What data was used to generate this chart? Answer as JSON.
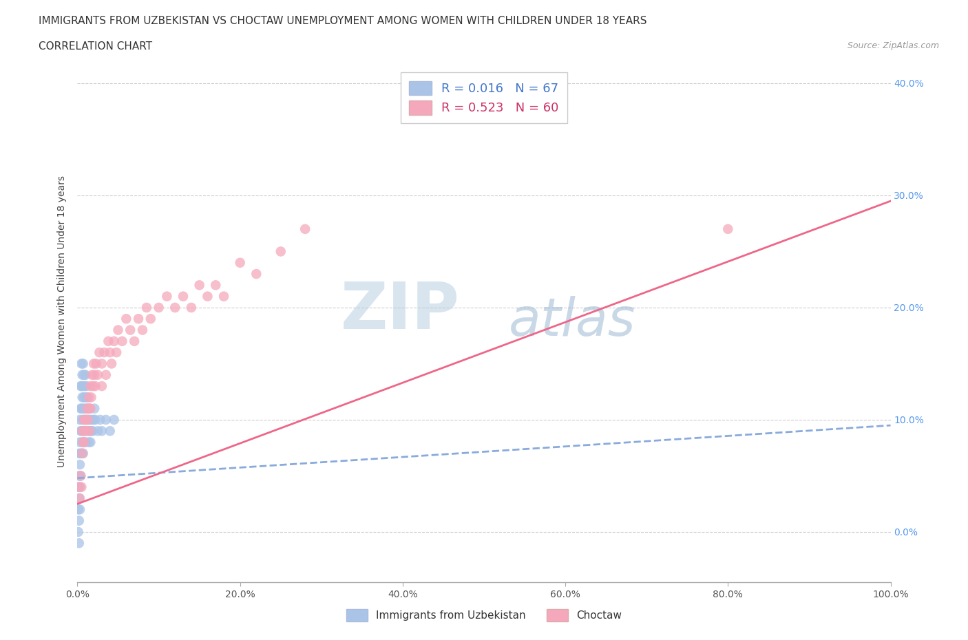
{
  "title_line1": "IMMIGRANTS FROM UZBEKISTAN VS CHOCTAW UNEMPLOYMENT AMONG WOMEN WITH CHILDREN UNDER 18 YEARS",
  "title_line2": "CORRELATION CHART",
  "source_text": "Source: ZipAtlas.com",
  "ylabel": "Unemployment Among Women with Children Under 18 years",
  "xlim": [
    0.0,
    1.0
  ],
  "ylim": [
    -0.045,
    0.42
  ],
  "xticks": [
    0.0,
    0.2,
    0.4,
    0.6,
    0.8,
    1.0
  ],
  "xtick_labels": [
    "0.0%",
    "20.0%",
    "40.0%",
    "60.0%",
    "80.0%",
    "100.0%"
  ],
  "yticks": [
    0.0,
    0.1,
    0.2,
    0.3,
    0.4
  ],
  "ytick_labels": [
    "0.0%",
    "10.0%",
    "20.0%",
    "30.0%",
    "40.0%"
  ],
  "legend_r1": "R = 0.016",
  "legend_n1": "N = 67",
  "legend_r2": "R = 0.523",
  "legend_n2": "N = 60",
  "color_uzbek": "#aac4e8",
  "color_choctaw": "#f5a8bc",
  "color_uzbek_line": "#88aadd",
  "color_choctaw_line": "#ee6688",
  "watermark_zip": "ZIP",
  "watermark_atlas": "atlas",
  "uzbek_trend_x": [
    0.0,
    1.0
  ],
  "uzbek_trend_y": [
    0.048,
    0.095
  ],
  "choctaw_trend_x": [
    0.0,
    1.0
  ],
  "choctaw_trend_y": [
    0.025,
    0.295
  ],
  "uzbek_x": [
    0.001,
    0.001,
    0.001,
    0.002,
    0.002,
    0.002,
    0.002,
    0.002,
    0.003,
    0.003,
    0.003,
    0.003,
    0.003,
    0.004,
    0.004,
    0.004,
    0.004,
    0.004,
    0.005,
    0.005,
    0.005,
    0.005,
    0.005,
    0.006,
    0.006,
    0.006,
    0.006,
    0.007,
    0.007,
    0.007,
    0.007,
    0.007,
    0.008,
    0.008,
    0.008,
    0.008,
    0.009,
    0.009,
    0.009,
    0.01,
    0.01,
    0.01,
    0.01,
    0.011,
    0.011,
    0.012,
    0.012,
    0.013,
    0.013,
    0.014,
    0.014,
    0.015,
    0.015,
    0.016,
    0.016,
    0.017,
    0.018,
    0.019,
    0.02,
    0.021,
    0.022,
    0.025,
    0.028,
    0.03,
    0.035,
    0.04,
    0.045
  ],
  "uzbek_y": [
    0.04,
    0.02,
    0.0,
    0.07,
    0.05,
    0.03,
    0.01,
    -0.01,
    0.1,
    0.08,
    0.06,
    0.04,
    0.02,
    0.13,
    0.11,
    0.09,
    0.07,
    0.05,
    0.15,
    0.13,
    0.11,
    0.09,
    0.07,
    0.14,
    0.12,
    0.1,
    0.08,
    0.15,
    0.13,
    0.11,
    0.09,
    0.07,
    0.14,
    0.12,
    0.1,
    0.08,
    0.13,
    0.11,
    0.09,
    0.14,
    0.12,
    0.1,
    0.08,
    0.13,
    0.11,
    0.12,
    0.1,
    0.11,
    0.09,
    0.1,
    0.08,
    0.11,
    0.09,
    0.1,
    0.08,
    0.09,
    0.1,
    0.09,
    0.1,
    0.11,
    0.1,
    0.09,
    0.1,
    0.09,
    0.1,
    0.09,
    0.1
  ],
  "choctaw_x": [
    0.002,
    0.003,
    0.004,
    0.005,
    0.006,
    0.006,
    0.007,
    0.008,
    0.008,
    0.009,
    0.01,
    0.011,
    0.012,
    0.013,
    0.014,
    0.015,
    0.015,
    0.016,
    0.016,
    0.017,
    0.018,
    0.019,
    0.02,
    0.021,
    0.022,
    0.023,
    0.025,
    0.027,
    0.03,
    0.03,
    0.033,
    0.035,
    0.038,
    0.04,
    0.042,
    0.045,
    0.048,
    0.05,
    0.055,
    0.06,
    0.065,
    0.07,
    0.075,
    0.08,
    0.085,
    0.09,
    0.1,
    0.11,
    0.12,
    0.13,
    0.14,
    0.15,
    0.16,
    0.17,
    0.18,
    0.2,
    0.22,
    0.25,
    0.28,
    0.8
  ],
  "choctaw_y": [
    0.04,
    0.03,
    0.05,
    0.04,
    0.07,
    0.09,
    0.08,
    0.1,
    0.08,
    0.09,
    0.1,
    0.09,
    0.11,
    0.1,
    0.12,
    0.11,
    0.09,
    0.13,
    0.11,
    0.12,
    0.14,
    0.13,
    0.15,
    0.14,
    0.13,
    0.15,
    0.14,
    0.16,
    0.15,
    0.13,
    0.16,
    0.14,
    0.17,
    0.16,
    0.15,
    0.17,
    0.16,
    0.18,
    0.17,
    0.19,
    0.18,
    0.17,
    0.19,
    0.18,
    0.2,
    0.19,
    0.2,
    0.21,
    0.2,
    0.21,
    0.2,
    0.22,
    0.21,
    0.22,
    0.21,
    0.24,
    0.23,
    0.25,
    0.27,
    0.27
  ]
}
